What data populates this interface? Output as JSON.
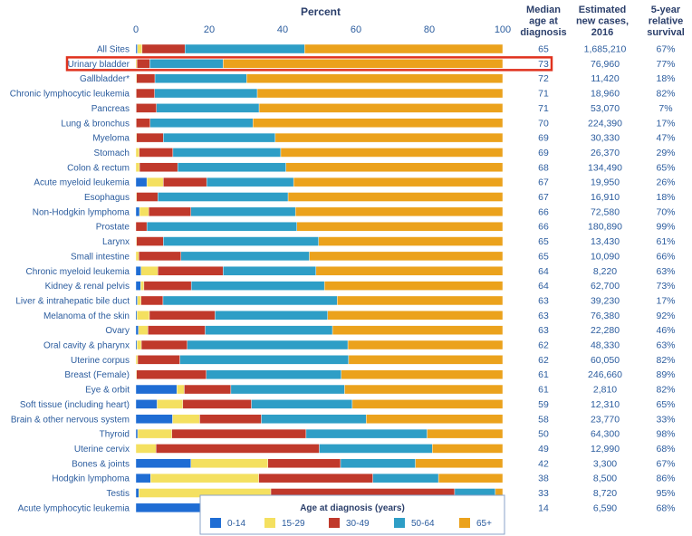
{
  "chart_data": {
    "type": "bar",
    "orientation": "horizontal",
    "stacked": true,
    "x_title": "Percent",
    "xlim": [
      0,
      100
    ],
    "x_ticks": [
      "0",
      "20",
      "40",
      "60",
      "80",
      "100"
    ],
    "legend": {
      "title": "Age at diagnosis (years)",
      "placement": "bottom"
    },
    "series": [
      {
        "name": "0-14",
        "color": "#1f6dd4"
      },
      {
        "name": "15-29",
        "color": "#f4e060"
      },
      {
        "name": "30-49",
        "color": "#c0392b"
      },
      {
        "name": "50-64",
        "color": "#2e9ec6"
      },
      {
        "name": "65+",
        "color": "#eba21c"
      }
    ],
    "columns": {
      "median_age": "Median age at diagnosis",
      "new_cases": "Estimated new cases, 2016",
      "survival": "5-year relative survival"
    },
    "highlighted_row": "Urinary bladder",
    "highlight_color": "#e0321e",
    "rows": [
      {
        "label": "All Sites",
        "values": [
          0.4,
          1.3,
          11.7,
          32.6,
          54.0
        ],
        "median_age": "65",
        "new_cases": "1,685,210",
        "survival": "67%"
      },
      {
        "label": "Urinary bladder",
        "values": [
          0.0,
          0.3,
          3.5,
          20.0,
          76.2
        ],
        "median_age": "73",
        "new_cases": "76,960",
        "survival": "77%"
      },
      {
        "label": "Gallbladder*",
        "values": [
          0.0,
          0.2,
          5.0,
          25.0,
          69.8
        ],
        "median_age": "72",
        "new_cases": "11,420",
        "survival": "18%"
      },
      {
        "label": "Chronic lymphocytic leukemia",
        "values": [
          0.0,
          0.1,
          5.0,
          28.0,
          66.9
        ],
        "median_age": "71",
        "new_cases": "18,960",
        "survival": "82%"
      },
      {
        "label": "Pancreas",
        "values": [
          0.0,
          0.1,
          5.5,
          28.0,
          66.4
        ],
        "median_age": "71",
        "new_cases": "53,070",
        "survival": "7%"
      },
      {
        "label": "Lung & bronchus",
        "values": [
          0.0,
          0.1,
          3.8,
          28.0,
          68.1
        ],
        "median_age": "70",
        "new_cases": "224,390",
        "survival": "17%"
      },
      {
        "label": "Myeloma",
        "values": [
          0.0,
          0.2,
          7.3,
          30.5,
          62.0
        ],
        "median_age": "69",
        "new_cases": "30,330",
        "survival": "47%"
      },
      {
        "label": "Stomach",
        "values": [
          0.0,
          0.9,
          9.2,
          29.4,
          60.5
        ],
        "median_age": "69",
        "new_cases": "26,370",
        "survival": "29%"
      },
      {
        "label": "Colon & rectum",
        "values": [
          0.0,
          1.0,
          10.4,
          29.5,
          59.1
        ],
        "median_age": "68",
        "new_cases": "134,490",
        "survival": "65%"
      },
      {
        "label": "Acute myeloid leukemia",
        "values": [
          3.0,
          4.5,
          11.8,
          23.7,
          57.0
        ],
        "median_age": "67",
        "new_cases": "19,950",
        "survival": "26%"
      },
      {
        "label": "Esophagus",
        "values": [
          0.0,
          0.2,
          5.8,
          35.5,
          58.5
        ],
        "median_age": "67",
        "new_cases": "16,910",
        "survival": "18%"
      },
      {
        "label": "Non-Hodgkin lymphoma",
        "values": [
          1.0,
          2.5,
          11.5,
          28.5,
          56.5
        ],
        "median_age": "66",
        "new_cases": "72,580",
        "survival": "70%"
      },
      {
        "label": "Prostate",
        "values": [
          0.0,
          0.0,
          3.0,
          40.9,
          56.1
        ],
        "median_age": "66",
        "new_cases": "180,890",
        "survival": "99%"
      },
      {
        "label": "Larynx",
        "values": [
          0.0,
          0.2,
          7.3,
          42.3,
          50.2
        ],
        "median_age": "65",
        "new_cases": "13,430",
        "survival": "61%"
      },
      {
        "label": "Small intestine",
        "values": [
          0.0,
          0.8,
          11.5,
          35.0,
          52.7
        ],
        "median_age": "65",
        "new_cases": "10,090",
        "survival": "66%"
      },
      {
        "label": "Chronic myeloid leukemia",
        "values": [
          1.4,
          4.6,
          17.8,
          25.3,
          50.9
        ],
        "median_age": "64",
        "new_cases": "8,220",
        "survival": "63%"
      },
      {
        "label": "Kidney & renal pelvis",
        "values": [
          1.3,
          0.9,
          12.9,
          36.3,
          48.6
        ],
        "median_age": "64",
        "new_cases": "62,700",
        "survival": "73%"
      },
      {
        "label": "Liver & intrahepatic bile duct",
        "values": [
          0.4,
          1.0,
          6.0,
          47.5,
          45.1
        ],
        "median_age": "63",
        "new_cases": "39,230",
        "survival": "17%"
      },
      {
        "label": "Melanoma of the skin",
        "values": [
          0.3,
          3.4,
          17.9,
          30.7,
          47.7
        ],
        "median_age": "63",
        "new_cases": "76,380",
        "survival": "92%"
      },
      {
        "label": "Ovary",
        "values": [
          0.7,
          2.6,
          15.6,
          34.7,
          46.4
        ],
        "median_age": "63",
        "new_cases": "22,280",
        "survival": "46%"
      },
      {
        "label": "Oral cavity & pharynx",
        "values": [
          0.3,
          1.2,
          12.5,
          43.8,
          42.2
        ],
        "median_age": "62",
        "new_cases": "48,330",
        "survival": "63%"
      },
      {
        "label": "Uterine corpus",
        "values": [
          0.0,
          0.5,
          11.5,
          46.0,
          42.0
        ],
        "median_age": "62",
        "new_cases": "60,050",
        "survival": "82%"
      },
      {
        "label": "Breast (Female)",
        "values": [
          0.0,
          0.2,
          19.0,
          36.8,
          44.0
        ],
        "median_age": "61",
        "new_cases": "246,660",
        "survival": "89%"
      },
      {
        "label": "Eye & orbit",
        "values": [
          11.2,
          2.0,
          12.7,
          31.0,
          43.1
        ],
        "median_age": "61",
        "new_cases": "2,810",
        "survival": "82%"
      },
      {
        "label": "Soft tissue (including heart)",
        "values": [
          5.8,
          7.0,
          18.7,
          27.5,
          41.0
        ],
        "median_age": "59",
        "new_cases": "12,310",
        "survival": "65%"
      },
      {
        "label": "Brain & other nervous system",
        "values": [
          10.0,
          7.4,
          16.8,
          28.6,
          37.2
        ],
        "median_age": "58",
        "new_cases": "23,770",
        "survival": "33%"
      },
      {
        "label": "Thyroid",
        "values": [
          0.5,
          9.3,
          36.6,
          33.0,
          20.6
        ],
        "median_age": "50",
        "new_cases": "64,300",
        "survival": "98%"
      },
      {
        "label": "Uterine cervix",
        "values": [
          0.0,
          5.5,
          44.5,
          30.8,
          19.2
        ],
        "median_age": "49",
        "new_cases": "12,990",
        "survival": "68%"
      },
      {
        "label": "Bones & joints",
        "values": [
          15.0,
          21.0,
          19.8,
          20.4,
          23.8
        ],
        "median_age": "42",
        "new_cases": "3,300",
        "survival": "67%"
      },
      {
        "label": "Hodgkin lymphoma",
        "values": [
          4.0,
          29.5,
          31.1,
          17.9,
          17.5
        ],
        "median_age": "38",
        "new_cases": "8,500",
        "survival": "86%"
      },
      {
        "label": "Testis",
        "values": [
          0.8,
          36.0,
          50.1,
          11.1,
          2.0
        ],
        "median_age": "33",
        "new_cases": "8,720",
        "survival": "95%"
      },
      {
        "label": "Acute lymphocytic leukemia",
        "values": [
          49.0,
          13.8,
          12.5,
          11.8,
          12.9
        ],
        "median_age": "14",
        "new_cases": "6,590",
        "survival": "68%"
      }
    ]
  }
}
